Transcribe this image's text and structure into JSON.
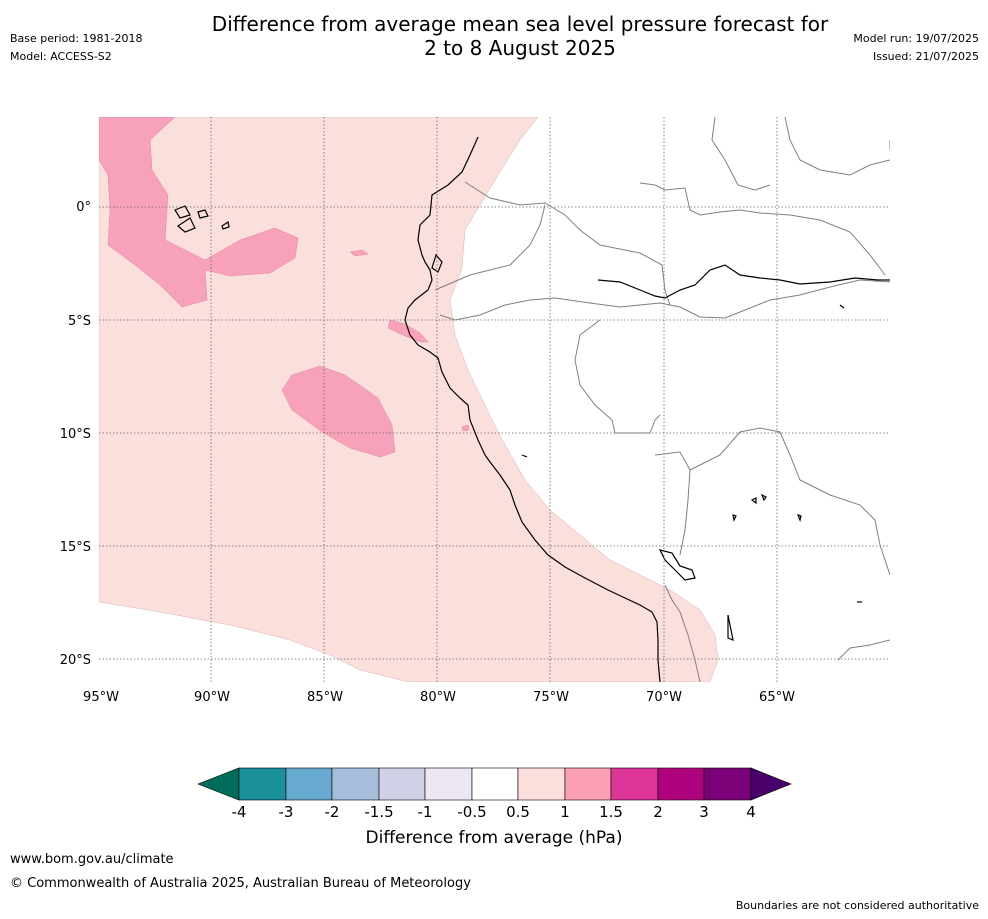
{
  "header": {
    "title_line1": "Difference from average mean sea level pressure forecast for",
    "title_line2": "2 to 8 August 2025",
    "base_period": "Base period: 1981-2018",
    "model": "Model: ACCESS-S2",
    "model_run": "Model run: 19/07/2025",
    "issued": "Issued: 21/07/2025"
  },
  "map": {
    "lon_ticks": [
      "95°W",
      "90°W",
      "85°W",
      "80°W",
      "75°W",
      "70°W",
      "65°W"
    ],
    "lat_ticks": [
      "0°",
      "5°S",
      "10°S",
      "15°S",
      "20°S"
    ],
    "colors": {
      "anomaly_0_5_to_1": "#fbdfdd",
      "anomaly_1_to_1_5": "#f8a1bb",
      "land_border": "#808080",
      "coastline": "#000000",
      "gridline": "#666666"
    }
  },
  "colorbar": {
    "title": "Difference from average (hPa)",
    "tick_labels": [
      "-4",
      "-3",
      "-2",
      "-1.5",
      "-1",
      "-0.5",
      "0.5",
      "1",
      "1.5",
      "2",
      "3",
      "4"
    ],
    "colors": [
      "#016c59",
      "#1b9099",
      "#67a9cf",
      "#a6bddb",
      "#d0d1e6",
      "#ece7f2",
      "#ffffff",
      "#fde0dd",
      "#fa9fb5",
      "#dd3497",
      "#ae017e",
      "#7a0177",
      "#49006a"
    ]
  },
  "footer": {
    "url": "www.bom.gov.au/climate",
    "copyright": "© Commonwealth of Australia 2025, Australian Bureau of Meteorology",
    "disclaimer": "Boundaries are not considered authoritative"
  }
}
